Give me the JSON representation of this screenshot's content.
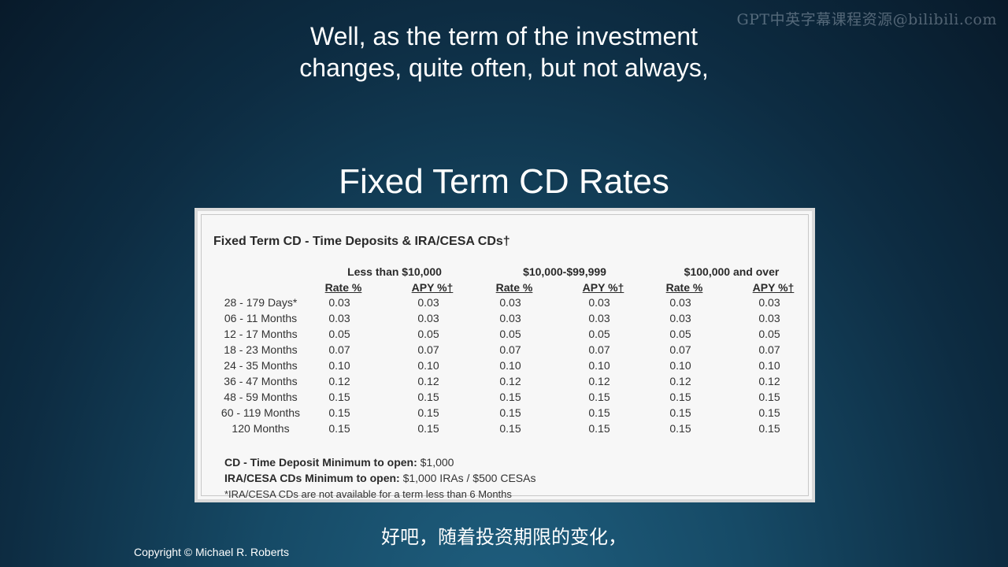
{
  "watermark": "GPT中英字幕课程资源@bilibili.com",
  "subtitle_en": {
    "line1": "Well, as the term of the investment",
    "line2": "changes, quite often, but not always,"
  },
  "slide_title": "Fixed Term CD Rates",
  "table": {
    "title": "Fixed Term CD - Time Deposits & IRA/CESA CDs†",
    "groups": [
      "Less than $10,000",
      "$10,000-$99,999",
      "$100,000 and over"
    ],
    "columns": [
      "Rate %",
      "APY %†",
      "Rate %",
      "APY %†",
      "Rate %",
      "APY %†"
    ],
    "rows": [
      {
        "term": "28 - 179 Days*",
        "values": [
          "0.03",
          "0.03",
          "0.03",
          "0.03",
          "0.03",
          "0.03"
        ]
      },
      {
        "term": "06 - 11 Months",
        "values": [
          "0.03",
          "0.03",
          "0.03",
          "0.03",
          "0.03",
          "0.03"
        ]
      },
      {
        "term": "12 - 17 Months",
        "values": [
          "0.05",
          "0.05",
          "0.05",
          "0.05",
          "0.05",
          "0.05"
        ]
      },
      {
        "term": "18 - 23 Months",
        "values": [
          "0.07",
          "0.07",
          "0.07",
          "0.07",
          "0.07",
          "0.07"
        ]
      },
      {
        "term": "24 - 35 Months",
        "values": [
          "0.10",
          "0.10",
          "0.10",
          "0.10",
          "0.10",
          "0.10"
        ]
      },
      {
        "term": "36 - 47 Months",
        "values": [
          "0.12",
          "0.12",
          "0.12",
          "0.12",
          "0.12",
          "0.12"
        ]
      },
      {
        "term": "48 - 59 Months",
        "values": [
          "0.15",
          "0.15",
          "0.15",
          "0.15",
          "0.15",
          "0.15"
        ]
      },
      {
        "term": "60 - 119 Months",
        "values": [
          "0.15",
          "0.15",
          "0.15",
          "0.15",
          "0.15",
          "0.15"
        ]
      },
      {
        "term": "120 Months",
        "values": [
          "0.15",
          "0.15",
          "0.15",
          "0.15",
          "0.15",
          "0.15"
        ]
      }
    ],
    "notes": {
      "cd_label": "CD - Time Deposit Minimum to open:",
      "cd_value": " $1,000",
      "ira_label": "IRA/CESA CDs Minimum to open:",
      "ira_value": " $1,000 IRAs / $500 CESAs",
      "footnote": "*IRA/CESA CDs are not available for a term less than 6 Months"
    }
  },
  "subtitle_zh": "好吧，随着投资期限的变化，",
  "copyright": "Copyright © Michael R. Roberts"
}
